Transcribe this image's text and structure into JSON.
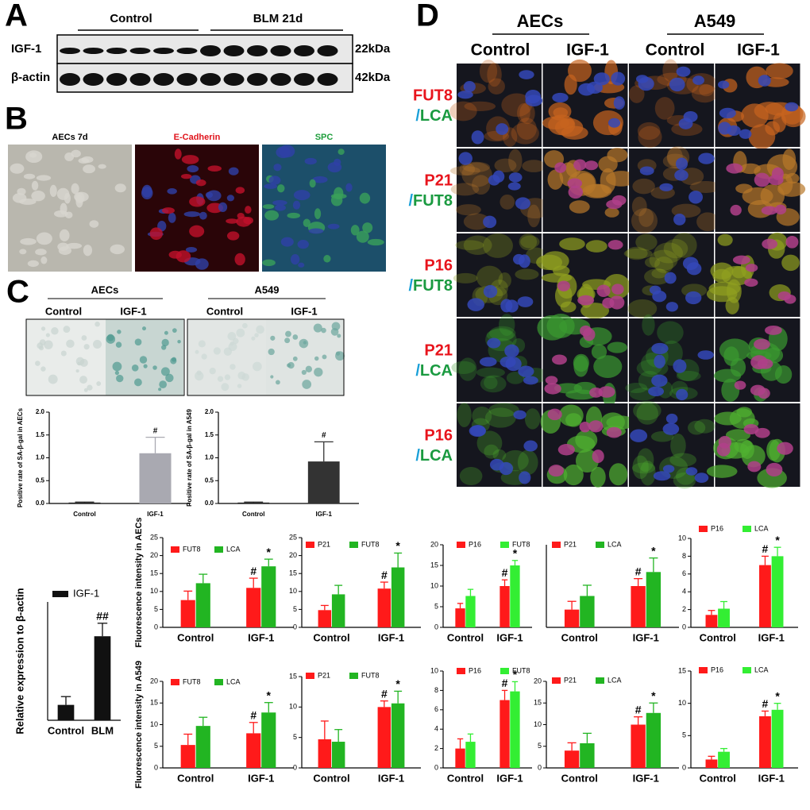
{
  "panel_a": {
    "label": "A",
    "groups": [
      "Control",
      "BLM 21d"
    ],
    "rows": [
      "IGF-1",
      "β-actin"
    ],
    "sizes": [
      "22kDa",
      "42kDa"
    ]
  },
  "panel_b": {
    "label": "B",
    "images": [
      "AECs 7d",
      "E-Cadherin",
      "SPC"
    ]
  },
  "panel_c": {
    "label": "C",
    "groups": [
      "AECs",
      "A549"
    ],
    "conditions": [
      "Control",
      "IGF-1",
      "Control",
      "IGF-1"
    ]
  },
  "panel_d": {
    "label": "D",
    "groups": [
      "AECs",
      "A549"
    ],
    "conditions": [
      "Control",
      "IGF-1",
      "Control",
      "IGF-1"
    ],
    "rows": [
      {
        "top": "FUT8",
        "sep": "/",
        "bottom": "LCA"
      },
      {
        "top": "P21",
        "sep": "/",
        "bottom": "FUT8"
      },
      {
        "top": "P16",
        "sep": "/",
        "bottom": "FUT8"
      },
      {
        "top": "P21",
        "sep": "/",
        "bottom": "LCA"
      },
      {
        "top": "P16",
        "sep": "/",
        "bottom": "LCA"
      }
    ]
  },
  "chart_data": [
    {
      "type": "bar",
      "ylabel": "Positive rate of SA-β-gal in AECs",
      "categories": [
        "Control",
        "IGF-1"
      ],
      "series": [
        {
          "colors": [
            "#222222",
            "#a9a9b1"
          ],
          "values": [
            0.02,
            1.1
          ],
          "errors": [
            0.01,
            0.35
          ],
          "annotations": [
            null,
            "#"
          ]
        }
      ],
      "ylim": [
        0,
        2
      ],
      "yticks": [
        {
          "value": 0,
          "label": "0.0"
        },
        0.5,
        {
          "value": 1,
          "label": "1.0"
        },
        1.5,
        {
          "value": 2,
          "label": "2.0"
        }
      ]
    },
    {
      "type": "bar",
      "ylabel": "Positive rate of SA-β-gal in A549",
      "categories": [
        "Control",
        "IGF-1"
      ],
      "series": [
        {
          "colors": [
            "#222222",
            "#333333"
          ],
          "values": [
            0.02,
            0.92
          ],
          "errors": [
            0.01,
            0.43
          ],
          "annotations": [
            null,
            "#"
          ]
        }
      ],
      "ylim": [
        0,
        2
      ],
      "yticks": [
        {
          "value": 0,
          "label": "0.0"
        },
        0.5,
        {
          "value": 1,
          "label": "1.0"
        },
        1.5,
        {
          "value": 2,
          "label": "2.0"
        }
      ]
    },
    {
      "type": "bar",
      "ylabel": "Relative expression to β-actin",
      "categories": [
        "Control",
        "BLM"
      ],
      "series": [
        {
          "name": "IGF-1",
          "color": "#111111",
          "values": [
            0.65,
            3.55
          ],
          "errors": [
            0.35,
            0.55
          ],
          "annotations": [
            null,
            "##"
          ]
        }
      ],
      "ylim": [
        0,
        5
      ]
    },
    {
      "type": "bar",
      "ylabel": "Fluorescence intensity in AECs",
      "categories": [
        "Control",
        "IGF-1"
      ],
      "series": [
        {
          "name": "FUT8",
          "color": "#ff1a1a",
          "values": [
            7.6,
            11
          ],
          "errors": [
            2.5,
            2.7
          ],
          "annotations": [
            null,
            "#"
          ]
        },
        {
          "name": "LCA",
          "color": "#22b522",
          "values": [
            12.3,
            17
          ],
          "errors": [
            2.5,
            2
          ],
          "annotations": [
            null,
            "*"
          ]
        }
      ],
      "ylim": [
        0,
        25
      ],
      "yticks": [
        0,
        5,
        10,
        15,
        20,
        25
      ]
    },
    {
      "type": "bar",
      "categories": [
        "Control",
        "IGF-1"
      ],
      "series": [
        {
          "name": "P21",
          "color": "#ff1a1a",
          "values": [
            4.8,
            10.8
          ],
          "errors": [
            1.3,
            1.8
          ],
          "annotations": [
            null,
            "#"
          ]
        },
        {
          "name": "FUT8",
          "color": "#22b522",
          "values": [
            9.2,
            16.7
          ],
          "errors": [
            2.5,
            4
          ],
          "annotations": [
            null,
            "*"
          ]
        }
      ],
      "ylim": [
        0,
        25
      ],
      "yticks": [
        0,
        5,
        10,
        15,
        20,
        25
      ]
    },
    {
      "type": "bar",
      "categories": [
        "Control",
        "IGF-1"
      ],
      "series": [
        {
          "name": "P16",
          "color": "#ff1a1a",
          "values": [
            4.6,
            10
          ],
          "errors": [
            1.2,
            1.5
          ],
          "annotations": [
            null,
            "#"
          ]
        },
        {
          "name": "FUT8",
          "color": "#33ee33",
          "values": [
            7.6,
            15
          ],
          "errors": [
            1.6,
            1.2
          ],
          "annotations": [
            null,
            "*"
          ]
        }
      ],
      "ylim": [
        0,
        20
      ],
      "yticks": [
        0,
        5,
        10,
        15,
        20
      ]
    },
    {
      "type": "bar",
      "categories": [
        "Control",
        "IGF-1"
      ],
      "series": [
        {
          "name": "P21",
          "color": "#ff1a1a",
          "values": [
            4.3,
            10
          ],
          "errors": [
            2,
            1.8
          ],
          "annotations": [
            null,
            "#"
          ]
        },
        {
          "name": "LCA",
          "color": "#22b522",
          "values": [
            7.6,
            13.4
          ],
          "errors": [
            2.6,
            3.4
          ],
          "annotations": [
            null,
            "*"
          ]
        }
      ],
      "ylim": [
        0,
        20
      ]
    },
    {
      "type": "bar",
      "categories": [
        "Control",
        "IGF-1"
      ],
      "series": [
        {
          "name": "P16",
          "color": "#ff1a1a",
          "values": [
            1.4,
            7
          ],
          "errors": [
            0.5,
            1
          ],
          "annotations": [
            null,
            "#"
          ]
        },
        {
          "name": "LCA",
          "color": "#33ee33",
          "values": [
            2.1,
            8
          ],
          "errors": [
            0.8,
            1
          ],
          "annotations": [
            null,
            "*"
          ]
        }
      ],
      "ylim": [
        0,
        10
      ],
      "yticks": [
        0,
        2,
        4,
        6,
        8,
        10
      ]
    },
    {
      "type": "bar",
      "ylabel": "Fluorescence intensity in A549",
      "categories": [
        "Control",
        "IGF-1"
      ],
      "series": [
        {
          "name": "FUT8",
          "color": "#ff1a1a",
          "values": [
            5.3,
            8
          ],
          "errors": [
            2.5,
            2.5
          ],
          "annotations": [
            null,
            "#"
          ]
        },
        {
          "name": "LCA",
          "color": "#22b522",
          "values": [
            9.7,
            12.8
          ],
          "errors": [
            2,
            2.3
          ],
          "annotations": [
            null,
            "*"
          ]
        }
      ],
      "ylim": [
        0,
        20
      ],
      "yticks": [
        0,
        5,
        10,
        15,
        20
      ]
    },
    {
      "type": "bar",
      "categories": [
        "Control",
        "IGF-1"
      ],
      "series": [
        {
          "name": "P21",
          "color": "#ff1a1a",
          "values": [
            4.7,
            10
          ],
          "errors": [
            3,
            1
          ],
          "annotations": [
            null,
            "#"
          ]
        },
        {
          "name": "FUT8",
          "color": "#22b522",
          "values": [
            4.3,
            10.6
          ],
          "errors": [
            2,
            2
          ],
          "annotations": [
            null,
            "*"
          ]
        }
      ],
      "ylim": [
        0,
        15
      ],
      "yticks": [
        0,
        5,
        10,
        15
      ]
    },
    {
      "type": "bar",
      "categories": [
        "Control",
        "IGF-1"
      ],
      "series": [
        {
          "name": "P16",
          "color": "#ff1a1a",
          "values": [
            2,
            7
          ],
          "errors": [
            1,
            1
          ],
          "annotations": [
            null,
            "#"
          ]
        },
        {
          "name": "FUT8",
          "color": "#33ee33",
          "values": [
            2.7,
            7.9
          ],
          "errors": [
            0.8,
            1
          ],
          "annotations": [
            null,
            "*"
          ]
        }
      ],
      "ylim": [
        0,
        10
      ],
      "yticks": [
        0,
        2,
        4,
        6,
        8,
        10
      ]
    },
    {
      "type": "bar",
      "categories": [
        "Control",
        "IGF-1"
      ],
      "series": [
        {
          "name": "P21",
          "color": "#ff1a1a",
          "values": [
            4,
            10
          ],
          "errors": [
            1.8,
            1.8
          ],
          "annotations": [
            null,
            "#"
          ]
        },
        {
          "name": "LCA",
          "color": "#22b522",
          "values": [
            5.7,
            12.7
          ],
          "errors": [
            2.3,
            2.3
          ],
          "annotations": [
            null,
            "*"
          ]
        }
      ],
      "ylim": [
        0,
        20
      ],
      "yticks": [
        0,
        5,
        10,
        15,
        20
      ]
    },
    {
      "type": "bar",
      "categories": [
        "Control",
        "IGF-1"
      ],
      "series": [
        {
          "name": "P16",
          "color": "#ff1a1a",
          "values": [
            1.3,
            8
          ],
          "errors": [
            0.5,
            0.8
          ],
          "annotations": [
            null,
            "#"
          ]
        },
        {
          "name": "LCA",
          "color": "#33ee33",
          "values": [
            2.5,
            9
          ],
          "errors": [
            0.5,
            1
          ],
          "annotations": [
            null,
            "*"
          ]
        }
      ],
      "ylim": [
        0,
        15
      ],
      "yticks": [
        0,
        5,
        10,
        15
      ]
    }
  ]
}
